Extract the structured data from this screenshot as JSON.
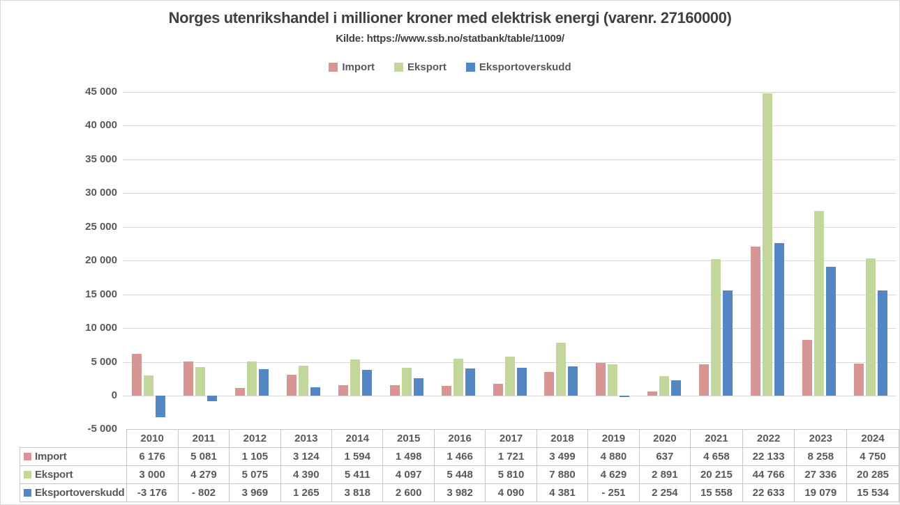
{
  "title": "Norges utenrikshandel i millioner kroner med elektrisk energi (varenr. 27160000)",
  "subtitle": "Kilde: https://www.ssb.no/statbank/table/11009/",
  "colors": {
    "import": "#d79694",
    "eksport": "#c3d69b",
    "eksportoverskudd": "#5586c4",
    "gridline": "#d9d9d9",
    "text": "#595959",
    "title_text": "#404040",
    "table_border": "#c6c6c6"
  },
  "legend": {
    "items": [
      {
        "label": "Import",
        "color": "#d79694"
      },
      {
        "label": "Eksport",
        "color": "#c3d69b"
      },
      {
        "label": "Eksportoverskudd",
        "color": "#5586c4"
      }
    ]
  },
  "chart_data": {
    "type": "bar",
    "title": "Norges utenrikshandel i millioner kroner med elektrisk energi (varenr. 27160000)",
    "subtitle": "Kilde: https://www.ssb.no/statbank/table/11009/",
    "categories": [
      "2010",
      "2011",
      "2012",
      "2013",
      "2014",
      "2015",
      "2016",
      "2017",
      "2018",
      "2019",
      "2020",
      "2021",
      "2022",
      "2023",
      "2024"
    ],
    "series": [
      {
        "name": "Import",
        "color": "#d79694",
        "values": [
          6176,
          5081,
          1105,
          3124,
          1594,
          1498,
          1466,
          1721,
          3499,
          4880,
          637,
          4658,
          22133,
          8258,
          4750
        ]
      },
      {
        "name": "Eksport",
        "color": "#c3d69b",
        "values": [
          3000,
          4279,
          5075,
          4390,
          5411,
          4097,
          5448,
          5810,
          7880,
          4629,
          2891,
          20215,
          44766,
          27336,
          20285
        ]
      },
      {
        "name": "Eksportoverskudd",
        "color": "#5586c4",
        "values": [
          -3176,
          -802,
          3969,
          1265,
          3818,
          2600,
          3982,
          4090,
          4381,
          -251,
          2254,
          15558,
          22633,
          19079,
          15534
        ]
      }
    ],
    "xlabel": "",
    "ylabel": "",
    "ylim": [
      -5000,
      45000
    ],
    "ytick_step": 5000,
    "y_tick_labels": [
      "45 000",
      "40 000",
      "35 000",
      "30 000",
      "25 000",
      "20 000",
      "15 000",
      "10 000",
      "5 000",
      "0",
      "-5 000"
    ],
    "grid": true,
    "legend_position": "top"
  },
  "table": {
    "header": [
      "2010",
      "2011",
      "2012",
      "2013",
      "2014",
      "2015",
      "2016",
      "2017",
      "2018",
      "2019",
      "2020",
      "2021",
      "2022",
      "2023",
      "2024"
    ],
    "rows": [
      {
        "label": "Import",
        "color": "#d79694",
        "cells": [
          "6 176",
          "5 081",
          "1 105",
          "3 124",
          "1 594",
          "1 498",
          "1 466",
          "1 721",
          "3 499",
          "4 880",
          "637",
          "4 658",
          "22 133",
          "8 258",
          "4 750"
        ]
      },
      {
        "label": "Eksport",
        "color": "#c3d69b",
        "cells": [
          "3 000",
          "4 279",
          "5 075",
          "4 390",
          "5 411",
          "4 097",
          "5 448",
          "5 810",
          "7 880",
          "4 629",
          "2 891",
          "20 215",
          "44 766",
          "27 336",
          "20 285"
        ]
      },
      {
        "label": "Eksportoverskudd",
        "color": "#5586c4",
        "cells": [
          "-3 176",
          "- 802",
          "3 969",
          "1 265",
          "3 818",
          "2 600",
          "3 982",
          "4 090",
          "4 381",
          "- 251",
          "2 254",
          "15 558",
          "22 633",
          "19 079",
          "15 534"
        ]
      }
    ]
  }
}
